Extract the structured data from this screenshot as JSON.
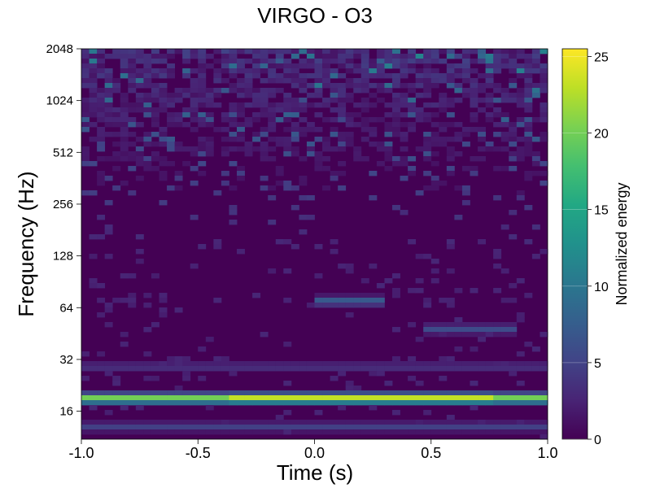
{
  "chart_data": {
    "type": "heatmap",
    "title": "VIRGO - O3",
    "xlabel": "Time (s)",
    "ylabel": "Frequency (Hz)",
    "xlim": [
      -1.0,
      1.0
    ],
    "ylim": [
      11,
      2048
    ],
    "yscale": "log2",
    "x_ticks": [
      -1.0,
      -0.5,
      0.0,
      0.5,
      1.0
    ],
    "x_tick_labels": [
      "-1.0",
      "-0.5",
      "0.0",
      "0.5",
      "1.0"
    ],
    "y_ticks": [
      16,
      32,
      64,
      128,
      256,
      512,
      1024,
      2048
    ],
    "y_tick_labels": [
      "16",
      "32",
      "64",
      "128",
      "256",
      "512",
      "1024",
      "2048"
    ],
    "colormap": "viridis",
    "colorbar": {
      "label": "Normalized energy",
      "range": [
        0,
        25.5
      ],
      "ticks": [
        0,
        5,
        10,
        15,
        20,
        25
      ],
      "tick_labels": [
        "0",
        "5",
        "10",
        "15",
        "20",
        "25"
      ]
    },
    "features": [
      {
        "t_start": -1.0,
        "t_end": 1.0,
        "freq": 19,
        "energy": 22
      },
      {
        "t_start": -0.3,
        "t_end": 0.7,
        "freq": 19,
        "energy": 25.5
      },
      {
        "t_start": -1.0,
        "t_end": 1.0,
        "freq": 13,
        "energy": 5
      },
      {
        "t_start": -1.0,
        "t_end": 1.0,
        "freq": 29,
        "energy": 4
      },
      {
        "t_start": 0.05,
        "t_end": 0.25,
        "freq": 70,
        "energy": 8
      },
      {
        "t_start": 0.5,
        "t_end": 0.8,
        "freq": 48,
        "energy": 6
      }
    ],
    "grid": false
  }
}
